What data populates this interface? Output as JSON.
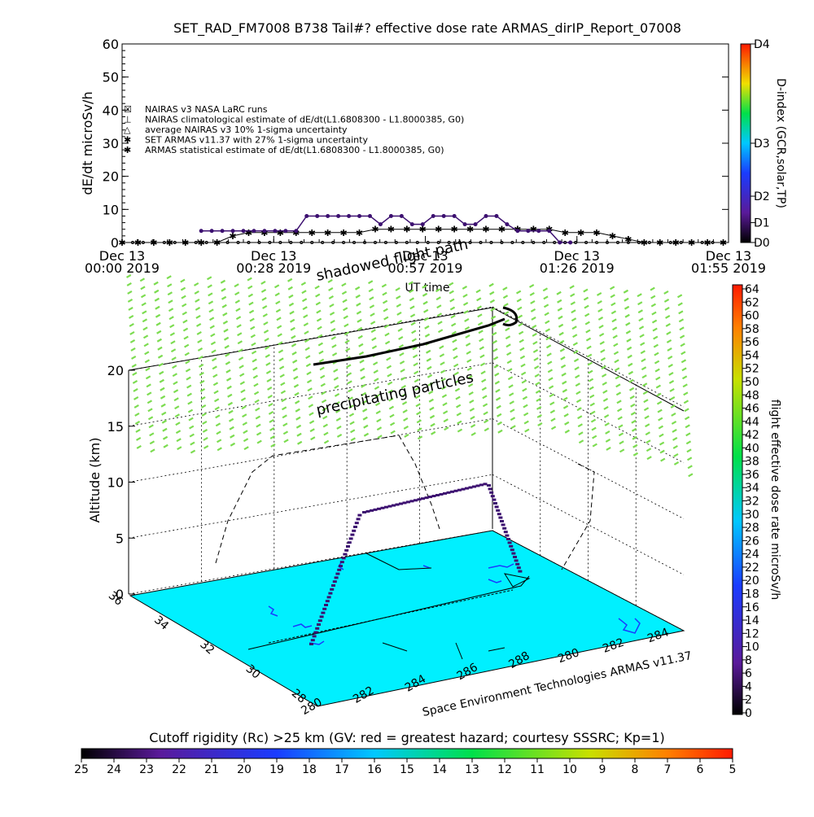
{
  "title": "SET_RAD_FM7008  B738 Tail#? effective dose rate ARMAS_dirIP_Report_07008",
  "colors": {
    "sea": "#00f0ff",
    "grid": "#000000",
    "particles": "#7cdc50",
    "coast": "#1a3cff",
    "path": "#000000"
  },
  "chart_data": [
    {
      "type": "line",
      "ylabel": "dE/dt microSv/h",
      "xlabel": "UT time",
      "ylim": [
        0,
        60
      ],
      "yticks": [
        0,
        10,
        20,
        30,
        40,
        50,
        60
      ],
      "xticks": [
        {
          "line1": "Dec 13",
          "line2": "00:00 2019"
        },
        {
          "line1": "Dec 13",
          "line2": "00:28 2019"
        },
        {
          "line1": "Dec 13",
          "line2": "00:57 2019"
        },
        {
          "line1": "Dec 13",
          "line2": "01:26 2019"
        },
        {
          "line1": "Dec 13",
          "line2": "01:55 2019"
        }
      ],
      "right_axis": {
        "label": "D-index (GCR,solar,TP)",
        "ticks": [
          {
            "label": "D4",
            "value": 60
          },
          {
            "label": "D3",
            "value": 30
          },
          {
            "label": "D2",
            "value": 14
          },
          {
            "label": "D1",
            "value": 6
          },
          {
            "label": "D0",
            "value": 0
          }
        ]
      },
      "legend": [
        {
          "symbol": "☒",
          "label": "NAIRAS v3 NASA LaRC runs"
        },
        {
          "symbol": "⊥",
          "label": "NAIRAS climatological estimate of dE/dt(L1.6808300 - L1.8000385, G0)"
        },
        {
          "symbol": "△",
          "label": "average NAIRAS v3 10% 1-sigma uncertainty"
        },
        {
          "symbol": "✱",
          "label": "SET ARMAS v11.37 with 27% 1-sigma uncertainty"
        },
        {
          "symbol": "✱",
          "label": "ARMAS statistical estimate of dE/dt(L1.6808300 - L1.8000385, G0)"
        }
      ],
      "series": [
        {
          "x_minutes": [
            0,
            3,
            6,
            9,
            12,
            15,
            18,
            21,
            24,
            27,
            30,
            33,
            36,
            39,
            42,
            45,
            48,
            51,
            54,
            57,
            60,
            63,
            66,
            69,
            72,
            75,
            78,
            81,
            84,
            87,
            90,
            93,
            96,
            99,
            102,
            105,
            108,
            111,
            114
          ],
          "values": [
            0,
            0,
            0,
            0,
            0,
            0,
            0,
            2,
            3,
            3,
            3,
            3,
            3,
            3,
            3,
            3,
            4,
            4,
            4,
            4,
            4,
            4,
            4,
            4,
            4,
            4,
            4,
            4,
            3,
            3,
            3,
            2,
            1,
            0,
            0,
            0,
            0,
            0,
            0
          ]
        },
        {
          "x_minutes": [
            15,
            17,
            19,
            21,
            23,
            25,
            27,
            29,
            31,
            33,
            35,
            37,
            39,
            41,
            43,
            45,
            47,
            49,
            51,
            53,
            55,
            57,
            59,
            61,
            63,
            65,
            67,
            69,
            71,
            73,
            75,
            77,
            79,
            81,
            83,
            85
          ],
          "values": [
            3.5,
            3.5,
            3.5,
            3.5,
            3.5,
            3.5,
            3.5,
            3.5,
            3.5,
            3.5,
            8,
            8,
            8,
            8,
            8,
            8,
            8,
            5.5,
            8,
            8,
            5.5,
            5.5,
            8,
            8,
            8,
            5.5,
            5.5,
            8,
            8,
            5.5,
            3.5,
            3.5,
            3.5,
            3.5,
            0,
            0
          ]
        }
      ]
    },
    {
      "type": "scatter",
      "ylabel": "Altitude (km)",
      "yticks": [
        0,
        5,
        10,
        15,
        20
      ],
      "lat_ticks": [
        "36",
        "34",
        "32",
        "30",
        "28"
      ],
      "lon_ticks_front": [
        "280",
        "282",
        "284",
        "286",
        "288"
      ],
      "lon_ticks_right": [
        "280",
        "282",
        "284"
      ],
      "annotations": [
        "shadowed flight path",
        "precipitating particles",
        "Space Environment Technologies ARMAS v11.37"
      ],
      "right_colorbar": {
        "label": "flight effective dose rate microSv/h",
        "ticks": [
          "64",
          "62",
          "60",
          "58",
          "56",
          "54",
          "52",
          "50",
          "48",
          "46",
          "44",
          "42",
          "40",
          "38",
          "36",
          "34",
          "32",
          "30",
          "28",
          "26",
          "24",
          "22",
          "20",
          "18",
          "16",
          "14",
          "12",
          "10",
          "8",
          "6",
          "4",
          "2",
          "0"
        ]
      },
      "bottom_colorbar": {
        "label": "Cutoff rigidity (Rc) >25 km (GV: red = greatest hazard; courtesy SSSRC; Kp=1)",
        "ticks": [
          "25",
          "24",
          "23",
          "22",
          "21",
          "20",
          "19",
          "18",
          "17",
          "16",
          "15",
          "14",
          "13",
          "12",
          "11",
          "10",
          "9",
          "8",
          "7",
          "6",
          "5"
        ]
      }
    }
  ]
}
